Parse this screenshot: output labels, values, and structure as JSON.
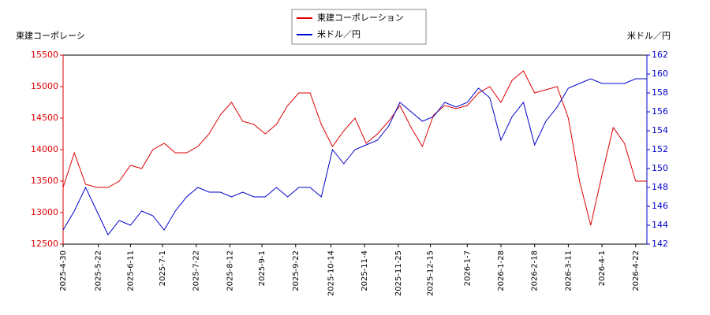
{
  "chart_data": {
    "type": "line",
    "y_label": "東建コーポレーシ",
    "y2_label": "米ドル／円",
    "x": [
      "2025-04-30",
      "2025-05-07",
      "2025-05-14",
      "2025-05-21",
      "2025-05-28",
      "2025-06-04",
      "2025-06-11",
      "2025-06-18",
      "2025-06-25",
      "2025-07-02",
      "2025-07-09",
      "2025-07-16",
      "2025-07-23",
      "2025-07-30",
      "2025-08-06",
      "2025-08-13",
      "2025-08-20",
      "2025-08-27",
      "2025-09-03",
      "2025-09-10",
      "2025-09-17",
      "2025-09-24",
      "2025-10-01",
      "2025-10-08",
      "2025-10-15",
      "2025-10-22",
      "2025-10-29",
      "2025-11-05",
      "2025-11-12",
      "2025-11-19",
      "2025-11-26",
      "2025-12-03",
      "2025-12-10",
      "2025-12-17",
      "2025-12-24",
      "2025-12-31",
      "2026-01-07",
      "2026-01-14",
      "2026-01-21",
      "2026-01-28",
      "2026-02-04",
      "2026-02-11",
      "2026-02-18",
      "2026-02-25",
      "2026-03-04",
      "2026-03-11",
      "2026-03-18",
      "2026-03-25",
      "2026-04-01",
      "2026-04-08",
      "2026-04-15",
      "2026-04-22",
      "2026-04-29"
    ],
    "series": [
      {
        "name": "東建コーポレーション",
        "color": "#dd0000",
        "axis": "y",
        "values": [
          13400,
          13950,
          13450,
          13400,
          13400,
          13500,
          13750,
          13700,
          14000,
          14100,
          13950,
          13950,
          14050,
          14250,
          14550,
          14750,
          14450,
          14400,
          14250,
          14400,
          14700,
          14900,
          14900,
          14400,
          14050,
          14300,
          14500,
          14100,
          14250,
          14450,
          14700,
          14350,
          14050,
          14550,
          14700,
          14650,
          14700,
          14900,
          15000,
          14750,
          15100,
          15250,
          14900,
          14950,
          15000,
          14500,
          13500,
          12800,
          13600,
          14350,
          14100,
          13500,
          13500
        ]
      },
      {
        "name": "米ドル／円",
        "color": "#0000cc",
        "axis": "y2",
        "values": [
          143.5,
          145.5,
          148,
          145.5,
          143,
          144.5,
          144,
          145.5,
          145,
          143.5,
          145.5,
          147,
          148,
          147.5,
          147.5,
          147,
          147.5,
          147,
          147,
          148,
          147,
          148,
          148,
          147,
          152,
          150.5,
          152,
          152.5,
          153,
          154.5,
          157,
          156,
          155,
          155.5,
          157,
          156.5,
          157,
          158.5,
          157.5,
          153,
          155.5,
          157,
          152.5,
          155,
          156.5,
          158.5,
          159,
          159.5,
          159,
          159,
          159,
          159.5,
          159.5
        ]
      }
    ],
    "xlim": [
      "2025-04-30",
      "2026-04-29"
    ],
    "xticks": [
      {
        "value": "2025-04-30",
        "label": "2025-4-30"
      },
      {
        "value": "2025-05-22",
        "label": "2025-5-22"
      },
      {
        "value": "2025-06-11",
        "label": "2025-6-11"
      },
      {
        "value": "2025-07-01",
        "label": "2025-7-1"
      },
      {
        "value": "2025-07-22",
        "label": "2025-7-22"
      },
      {
        "value": "2025-08-12",
        "label": "2025-8-12"
      },
      {
        "value": "2025-09-01",
        "label": "2025-9-1"
      },
      {
        "value": "2025-09-22",
        "label": "2025-9-22"
      },
      {
        "value": "2025-10-14",
        "label": "2025-10-14"
      },
      {
        "value": "2025-11-04",
        "label": "2025-11-4"
      },
      {
        "value": "2025-11-25",
        "label": "2025-11-25"
      },
      {
        "value": "2025-12-15",
        "label": "2025-12-15"
      },
      {
        "value": "2026-01-07",
        "label": "2026-1-7"
      },
      {
        "value": "2026-01-28",
        "label": "2026-1-28"
      },
      {
        "value": "2026-02-18",
        "label": "2026-2-18"
      },
      {
        "value": "2026-03-11",
        "label": "2026-3-11"
      },
      {
        "value": "2026-04-01",
        "label": "2026-4-1"
      },
      {
        "value": "2026-04-22",
        "label": "2026-4-22"
      }
    ],
    "ylim": [
      12500,
      15500
    ],
    "yticks": [
      12500,
      13000,
      13500,
      14000,
      14500,
      15000,
      15500
    ],
    "y2lim": [
      142,
      162
    ],
    "y2ticks": [
      142,
      144,
      146,
      148,
      150,
      152,
      154,
      156,
      158,
      160,
      162
    ],
    "legend": "top"
  }
}
